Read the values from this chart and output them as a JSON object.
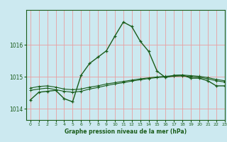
{
  "title": "Graphe pression niveau de la mer (hPa)",
  "background_color": "#cce9f0",
  "grid_color": "#e8a0a0",
  "line_color": "#1a5c1a",
  "xlim": [
    -0.5,
    23
  ],
  "ylim": [
    1013.65,
    1017.1
  ],
  "yticks": [
    1014,
    1015,
    1016
  ],
  "xticks": [
    0,
    1,
    2,
    3,
    4,
    5,
    6,
    7,
    8,
    9,
    10,
    11,
    12,
    13,
    14,
    15,
    16,
    17,
    18,
    19,
    20,
    21,
    22,
    23
  ],
  "series1_x": [
    0,
    1,
    2,
    3,
    4,
    5,
    6,
    7,
    8,
    9,
    10,
    11,
    12,
    13,
    14,
    15,
    16,
    17,
    18,
    19,
    20,
    21,
    22,
    23
  ],
  "series1_y": [
    1014.65,
    1014.7,
    1014.72,
    1014.68,
    1014.62,
    1014.6,
    1014.62,
    1014.68,
    1014.72,
    1014.78,
    1014.82,
    1014.86,
    1014.9,
    1014.94,
    1014.97,
    1015.0,
    1015.02,
    1015.04,
    1015.06,
    1015.04,
    1015.02,
    1014.98,
    1014.92,
    1014.88
  ],
  "series2_x": [
    0,
    1,
    2,
    3,
    4,
    5,
    6,
    7,
    8,
    9,
    10,
    11,
    12,
    13,
    14,
    15,
    16,
    17,
    18,
    19,
    20,
    21,
    22,
    23
  ],
  "series2_y": [
    1014.58,
    1014.62,
    1014.65,
    1014.6,
    1014.55,
    1014.52,
    1014.55,
    1014.62,
    1014.67,
    1014.73,
    1014.78,
    1014.82,
    1014.87,
    1014.91,
    1014.95,
    1014.98,
    1015.0,
    1015.02,
    1015.03,
    1015.01,
    1014.99,
    1014.94,
    1014.88,
    1014.84
  ],
  "main_x": [
    0,
    1,
    2,
    3,
    4,
    5,
    6,
    7,
    8,
    9,
    10,
    11,
    12,
    13,
    14,
    15,
    16,
    17,
    18,
    19,
    20,
    21,
    22,
    23
  ],
  "main_y": [
    1014.28,
    1014.52,
    1014.55,
    1014.58,
    1014.32,
    1014.22,
    1015.05,
    1015.42,
    1015.62,
    1015.82,
    1016.28,
    1016.72,
    1016.58,
    1016.12,
    1015.8,
    1015.18,
    1014.98,
    1015.05,
    1015.06,
    1014.96,
    1014.96,
    1014.88,
    1014.72,
    1014.72
  ]
}
